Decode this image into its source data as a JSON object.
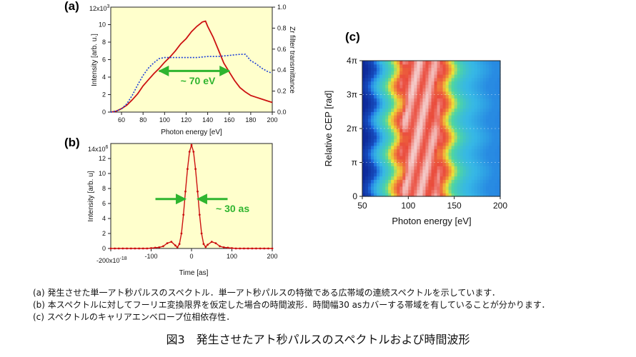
{
  "chart_data": [
    {
      "panel": "(a)",
      "type": "line",
      "xlabel": "Photon energy [eV]",
      "ylabel": "Intensity [arb. u.]",
      "y2label": "Zr filter transmittance",
      "y_exponent_label": "12x10",
      "y_exponent_sup": "3",
      "xlim": [
        50,
        200
      ],
      "ylim": [
        0,
        12
      ],
      "y2lim": [
        0,
        1.0
      ],
      "x_ticks": [
        "60",
        "80",
        "100",
        "120",
        "140",
        "160",
        "180",
        "200"
      ],
      "y_ticks": [
        "0",
        "2",
        "4",
        "6",
        "8",
        "10"
      ],
      "y2_ticks": [
        "0.0",
        "0.2",
        "0.4",
        "0.6",
        "0.8",
        "1.0"
      ],
      "background": "#ffffcc",
      "annotation": "~ 70 eV",
      "annotation_arrow_x": [
        95,
        160
      ],
      "annotation_arrow_y": 4.7,
      "series": [
        {
          "axis": "left",
          "color": "#cc1111",
          "x": [
            50,
            55,
            60,
            65,
            70,
            75,
            80,
            85,
            90,
            95,
            100,
            105,
            110,
            115,
            120,
            125,
            130,
            133,
            135,
            138,
            140,
            145,
            150,
            155,
            160,
            165,
            170,
            175,
            180,
            185,
            190,
            195,
            200
          ],
          "y": [
            0,
            0.1,
            0.4,
            0.8,
            1.4,
            2.1,
            3.0,
            3.7,
            4.4,
            5.0,
            5.7,
            6.3,
            7.0,
            7.8,
            8.4,
            9.2,
            9.8,
            10.1,
            10.3,
            10.4,
            9.8,
            8.6,
            7.1,
            5.6,
            4.6,
            3.6,
            2.8,
            2.3,
            1.9,
            1.7,
            1.5,
            1.3,
            1.1
          ]
        },
        {
          "axis": "right",
          "color": "#1a3cd8",
          "dash": true,
          "x": [
            50,
            55,
            60,
            65,
            70,
            75,
            80,
            85,
            90,
            95,
            100,
            110,
            120,
            130,
            140,
            150,
            160,
            170,
            175,
            180,
            185,
            190,
            195,
            200
          ],
          "y": [
            0.0,
            0.01,
            0.03,
            0.08,
            0.16,
            0.26,
            0.35,
            0.42,
            0.47,
            0.51,
            0.52,
            0.52,
            0.52,
            0.52,
            0.53,
            0.53,
            0.54,
            0.55,
            0.55,
            0.49,
            0.46,
            0.42,
            0.39,
            0.37
          ]
        }
      ]
    },
    {
      "panel": "(b)",
      "type": "line",
      "xlabel": "Time [as]",
      "ylabel": "Intensity [arb. u]",
      "y_exponent_label": "14x10",
      "y_exponent_sup": "6",
      "x_first_tick_label": "-200x10",
      "x_first_tick_sup": "-18",
      "xlim": [
        -200,
        200
      ],
      "ylim": [
        0,
        14
      ],
      "x_ticks": [
        "-100",
        "0",
        "100",
        "200"
      ],
      "y_ticks": [
        "0",
        "2",
        "4",
        "6",
        "8",
        "10",
        "12"
      ],
      "background": "#ffffcc",
      "annotation": "~ 30 as",
      "annotation_arrow_y": 6.6,
      "annotation_arrow_gap": 15,
      "series": [
        {
          "color": "#cc1111",
          "markers": true,
          "x": [
            -200,
            -190,
            -180,
            -170,
            -160,
            -150,
            -140,
            -130,
            -120,
            -110,
            -100,
            -90,
            -80,
            -70,
            -60,
            -50,
            -40,
            -35,
            -30,
            -25,
            -20,
            -15,
            -10,
            -5,
            0,
            5,
            10,
            15,
            20,
            25,
            30,
            35,
            40,
            50,
            60,
            70,
            80,
            90,
            100,
            110,
            120,
            130,
            140,
            150,
            160,
            170,
            180,
            190,
            200
          ],
          "y": [
            0,
            0,
            0,
            0,
            0,
            0,
            0,
            0,
            0,
            0,
            0.05,
            0.1,
            0.15,
            0.3,
            0.7,
            0.9,
            0.4,
            0.15,
            0.6,
            2.0,
            4.5,
            7.6,
            10.6,
            12.9,
            13.8,
            12.9,
            10.6,
            7.6,
            4.5,
            2.0,
            0.6,
            0.2,
            0.5,
            0.9,
            0.7,
            0.3,
            0.15,
            0.1,
            0.05,
            0,
            0,
            0,
            0,
            0,
            0,
            0,
            0,
            0,
            0
          ]
        }
      ]
    },
    {
      "panel": "(c)",
      "type": "heatmap",
      "xlabel": "Photon energy [eV]",
      "ylabel": "Relative CEP [rad]",
      "xlim": [
        50,
        200
      ],
      "ylim": [
        0,
        4
      ],
      "x_ticks": [
        "50",
        "100",
        "150",
        "200"
      ],
      "y_ticks": [
        "0",
        "π",
        "2π",
        "3π",
        "4π"
      ],
      "colormap": [
        "#0b1f8f",
        "#1f6ee0",
        "#36b7e6",
        "#4fd6a0",
        "#e8e23a",
        "#f2a23a",
        "#ea4b3c",
        "#f5d9d9"
      ],
      "profile_energy": [
        50,
        55,
        60,
        65,
        70,
        75,
        80,
        85,
        90,
        95,
        100,
        110,
        120,
        130,
        135,
        140,
        145,
        150,
        155,
        160,
        165,
        170,
        175,
        180,
        185,
        190,
        195,
        200
      ],
      "profile_value": [
        0.02,
        0.05,
        0.08,
        0.22,
        0.3,
        0.36,
        0.45,
        0.6,
        0.78,
        0.88,
        0.92,
        0.93,
        0.92,
        0.9,
        0.86,
        0.78,
        0.58,
        0.45,
        0.38,
        0.33,
        0.3,
        0.28,
        0.26,
        0.24,
        0.22,
        0.2,
        0.2,
        0.19
      ]
    }
  ],
  "captions": [
    "(a) 発生させた単一アト秒パルスのスペクトル．単一アト秒パルスの特徴である広帯域の連続スペクトルを示しています．",
    "(b) 本スペクトルに対してフーリエ変換限界を仮定した場合の時間波形．時間幅30 asカバーする帯域を有していることが分かります．",
    "(c) スペクトルのキャリアエンベロープ位相依存性．"
  ],
  "figure_title": "図3　発生させたアト秒パルスのスペクトルおよび時間波形"
}
